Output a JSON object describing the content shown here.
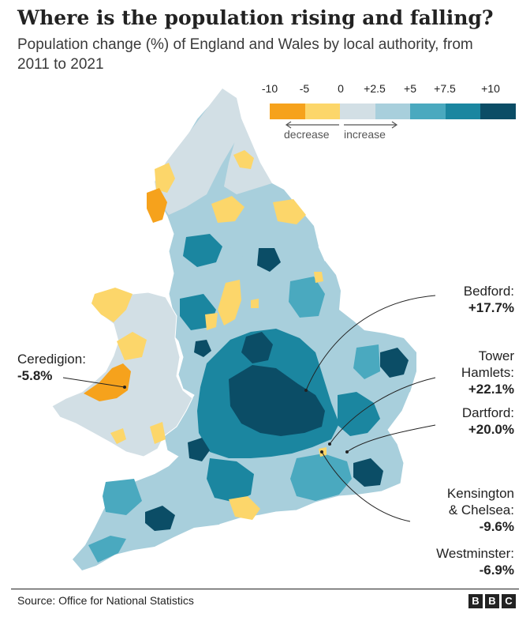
{
  "title": "Where is the population rising and falling?",
  "subtitle": "Population change (%) of England and Wales by local authority, from 2011 to 2021",
  "legend": {
    "ticks": [
      "-10",
      "-5",
      "0",
      "+2.5",
      "+5",
      "+7.5",
      "+10"
    ],
    "colors": [
      "#f6a21c",
      "#fcd66a",
      "#d2dfe5",
      "#a8cfdc",
      "#4aa9bf",
      "#1b86a0",
      "#0b4d66"
    ],
    "decrease_label": "decrease",
    "increase_label": "increase"
  },
  "callouts": {
    "ceredigion": {
      "name": "Ceredigion:",
      "value": "-5.8%"
    },
    "bedford": {
      "name": "Bedford:",
      "value": "+17.7%"
    },
    "tower_hamlets": {
      "name_line1": "Tower",
      "name_line2": "Hamlets:",
      "value": "+22.1%"
    },
    "dartford": {
      "name": "Dartford:",
      "value": "+20.0%"
    },
    "kensington": {
      "name_line1": "Kensington",
      "name_line2": "& Chelsea:",
      "value": "-9.6%"
    },
    "westminster": {
      "name": "Westminster:",
      "value": "-6.9%"
    }
  },
  "map_colors": {
    "wales_base": "#d2dfe5",
    "england_base": "#a8cfdc",
    "decrease_strong": "#f6a21c",
    "decrease_mild": "#fcd66a",
    "mid": "#4aa9bf",
    "high": "#1b86a0",
    "very_high": "#0b4d66",
    "sea_line": "#ffffff"
  },
  "source": "Source: Office for National Statistics",
  "logo": [
    "B",
    "B",
    "C"
  ]
}
